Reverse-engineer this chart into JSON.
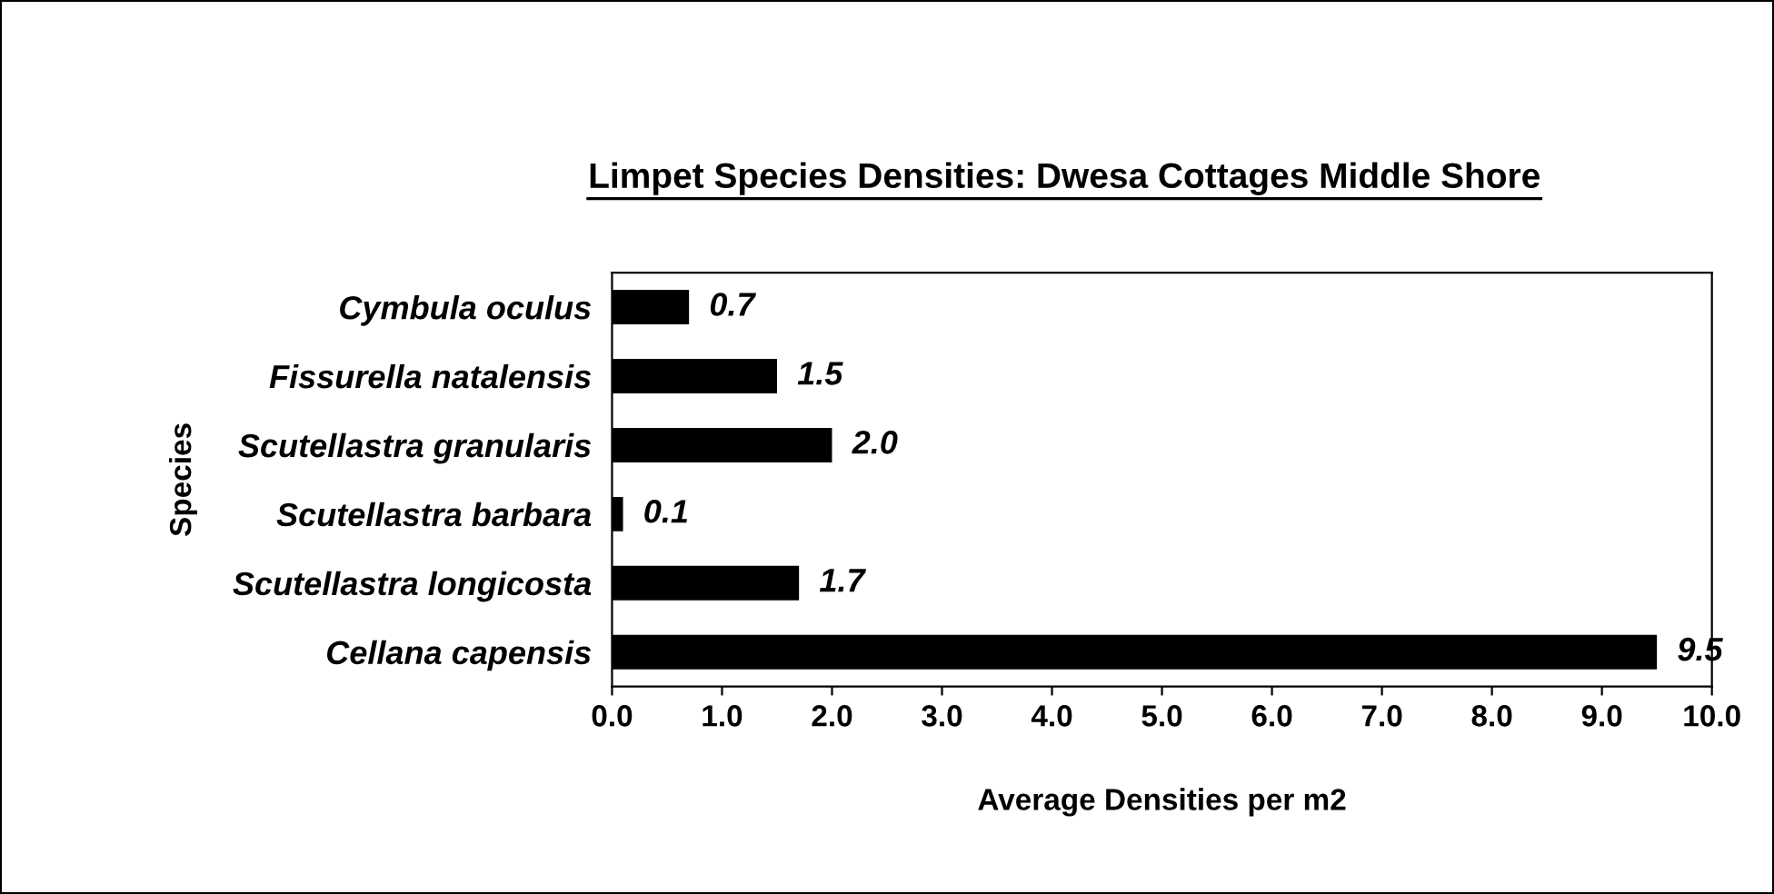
{
  "chart_data": {
    "type": "bar",
    "orientation": "horizontal",
    "title": "Limpet Species Densities: Dwesa Cottages Middle Shore",
    "xlabel": "Average Densities per m2",
    "ylabel": "Species",
    "categories": [
      "Cymbula oculus",
      "Fissurella natalensis",
      "Scutellastra granularis",
      "Scutellastra barbara",
      "Scutellastra longicosta",
      "Cellana capensis"
    ],
    "values": [
      0.7,
      1.5,
      2.0,
      0.1,
      1.7,
      9.5
    ],
    "value_labels": [
      "0.7",
      "1.5",
      "2.0",
      "0.1",
      "1.7",
      "9.5"
    ],
    "color": "#000000",
    "xlim": [
      0,
      10
    ],
    "xticks": [
      {
        "value": 0,
        "label": "0.0"
      },
      {
        "value": 1,
        "label": "1.0"
      },
      {
        "value": 2,
        "label": "2.0"
      },
      {
        "value": 3,
        "label": "3.0"
      },
      {
        "value": 4,
        "label": "4.0"
      },
      {
        "value": 5,
        "label": "5.0"
      },
      {
        "value": 6,
        "label": "6.0"
      },
      {
        "value": 7,
        "label": "7.0"
      },
      {
        "value": 8,
        "label": "8.0"
      },
      {
        "value": 9,
        "label": "9.0"
      },
      {
        "value": 10,
        "label": "10.0"
      }
    ],
    "grid": false,
    "legend": false
  }
}
